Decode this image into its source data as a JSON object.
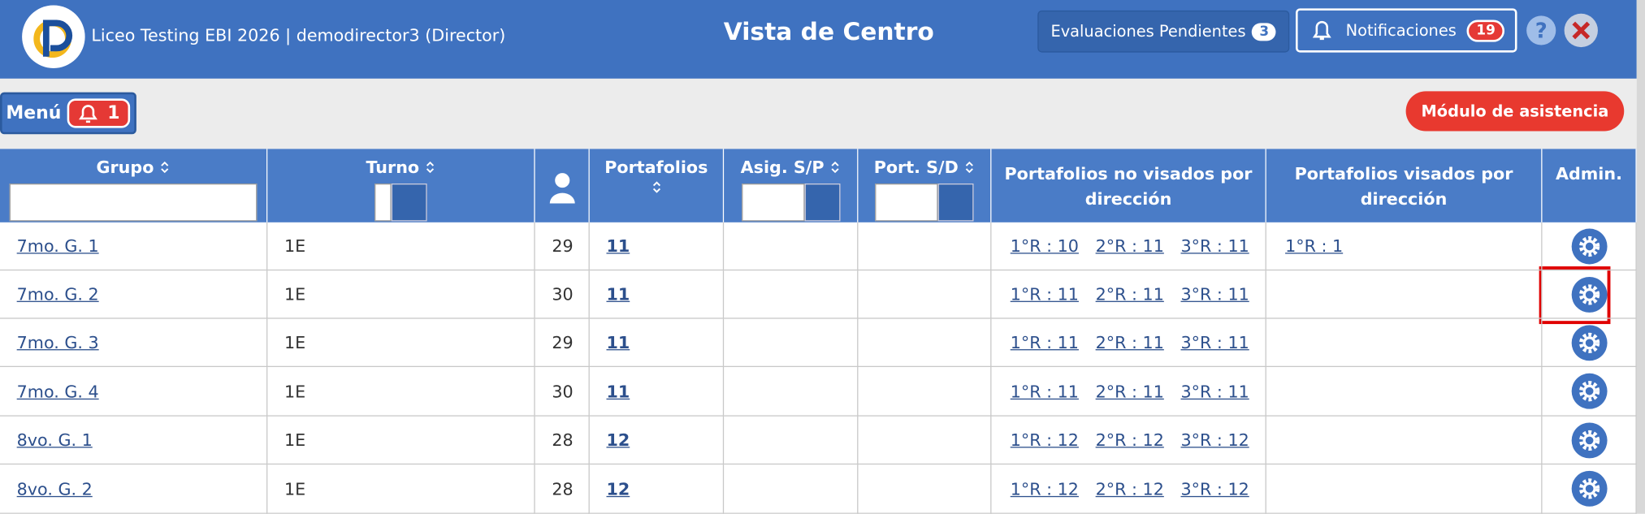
{
  "header": {
    "school": "Liceo Testing EBI 2026 | demodirector3 (Director)",
    "title": "Vista de Centro",
    "pending_label": "Evaluaciones Pendientes",
    "pending_count": 3,
    "notifications_label": "Notificaciones",
    "notifications_count": 19,
    "help": "?"
  },
  "toolbar": {
    "menu": "Menú",
    "menu_count": 1,
    "attendance": "Módulo de asistencia"
  },
  "table": {
    "columns": [
      "Grupo",
      "Turno",
      "Portafolios",
      "Asig. S/P",
      "Port. S/D",
      "Portafolios no visados por dirección",
      "Portafolios visados por dirección",
      "Admin."
    ],
    "rows": [
      {
        "grupo": "7mo. G. 1",
        "turno": "1E",
        "alumnos": 29,
        "portafolios": 11,
        "no_visados": [
          "1°R : 10",
          "2°R : 11",
          "3°R : 11"
        ],
        "visados": [
          "1°R : 1"
        ]
      },
      {
        "grupo": "7mo. G. 2",
        "turno": "1E",
        "alumnos": 30,
        "portafolios": 11,
        "no_visados": [
          "1°R : 11",
          "2°R : 11",
          "3°R : 11"
        ]
      },
      {
        "grupo": "7mo. G. 3",
        "turno": "1E",
        "alumnos": 29,
        "portafolios": 11,
        "no_visados": [
          "1°R : 11",
          "2°R : 11",
          "3°R : 11"
        ]
      },
      {
        "grupo": "7mo. G. 4",
        "turno": "1E",
        "alumnos": 30,
        "portafolios": 11,
        "no_visados": [
          "1°R : 11",
          "2°R : 11",
          "3°R : 11"
        ]
      },
      {
        "grupo": "8vo. G. 1",
        "turno": "1E",
        "alumnos": 28,
        "portafolios": 12,
        "no_visados": [
          "1°R : 12",
          "2°R : 12",
          "3°R : 12"
        ]
      },
      {
        "grupo": "8vo. G. 2",
        "turno": "1E",
        "alumnos": 28,
        "portafolios": 12,
        "no_visados": [
          "1°R : 12",
          "2°R : 12",
          "3°R : 12"
        ]
      }
    ]
  }
}
